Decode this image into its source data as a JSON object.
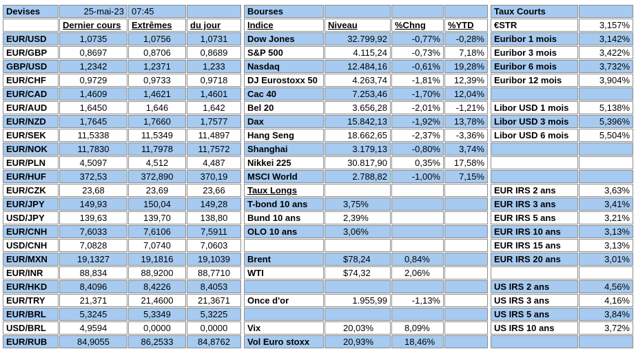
{
  "table": {
    "rows": [
      [
        "Devises",
        "25-mai-23",
        "07:45",
        null,
        "Bourses",
        null,
        null,
        null,
        "Taux Courts",
        null
      ],
      [
        null,
        "Dernier cours",
        "Extrêmes",
        "du jour",
        "Indice",
        "Niveau",
        "%Chng",
        "%YTD",
        "€STR",
        "3,157%"
      ],
      [
        "EUR/USD",
        "1,0735",
        "1,0756",
        "1,0731",
        "Dow Jones",
        "32.799,92",
        "-0,77%",
        "-0,28%",
        "Euribor 1 mois",
        "3,142%"
      ],
      [
        "EUR/GBP",
        "0,8697",
        "0,8706",
        "0,8689",
        "S&P 500",
        "4.115,24",
        "-0,73%",
        "7,18%",
        "Euribor 3 mois",
        "3,422%"
      ],
      [
        "GBP/USD",
        "1,2342",
        "1,2371",
        "1,233",
        "Nasdaq",
        "12.484,16",
        "-0,61%",
        "19,28%",
        "Euribor 6 mois",
        "3,732%"
      ],
      [
        "EUR/CHF",
        "0,9729",
        "0,9733",
        "0,9718",
        "DJ Eurostoxx 50",
        "4.263,74",
        "-1,81%",
        "12,39%",
        "Euribor 12 mois",
        "3,904%"
      ],
      [
        "EUR/CAD",
        "1,4609",
        "1,4621",
        "1,4601",
        "Cac 40",
        "7.253,46",
        "-1,70%",
        "12,04%",
        null,
        null
      ],
      [
        "EUR/AUD",
        "1,6450",
        "1,646",
        "1,642",
        "Bel 20",
        "3.656,28",
        "-2,01%",
        "-1,21%",
        "Libor USD 1 mois",
        "5,138%"
      ],
      [
        "EUR/NZD",
        "1,7645",
        "1,7660",
        "1,7577",
        "Dax",
        "15.842,13",
        "-1,92%",
        "13,78%",
        "Libor USD 3 mois",
        "5,396%"
      ],
      [
        "EUR/SEK",
        "11,5338",
        "11,5349",
        "11,4897",
        "Hang Seng",
        "18.662,65",
        "-2,37%",
        "-3,36%",
        "Libor USD 6 mois",
        "5,504%"
      ],
      [
        "EUR/NOK",
        "11,7830",
        "11,7978",
        "11,7572",
        "Shanghai",
        "3.179,13",
        "-0,80%",
        "3,74%",
        null,
        null
      ],
      [
        "EUR/PLN",
        "4,5097",
        "4,512",
        "4,487",
        "Nikkei 225",
        "30.817,90",
        "0,35%",
        "17,58%",
        null,
        null
      ],
      [
        "EUR/HUF",
        "372,53",
        "372,890",
        "370,19",
        "MSCI World",
        "2.788,82",
        "-1,00%",
        "7,15%",
        null,
        null
      ],
      [
        "EUR/CZK",
        "23,68",
        "23,69",
        "23,66",
        "Taux Longs",
        null,
        null,
        null,
        "EUR IRS 2 ans",
        "3,63%"
      ],
      [
        "EUR/JPY",
        "149,93",
        "150,04",
        "149,28",
        "T-bond 10 ans",
        "3,75%",
        null,
        null,
        "EUR IRS 3 ans",
        "3,41%"
      ],
      [
        "USD/JPY",
        "139,63",
        "139,70",
        "138,80",
        "Bund 10 ans",
        "2,39%",
        null,
        null,
        "EUR IRS 5 ans",
        "3,21%"
      ],
      [
        "EUR/CNH",
        "7,6033",
        "7,6106",
        "7,5911",
        "OLO 10 ans",
        "3,06%",
        null,
        null,
        "EUR IRS 10 ans",
        "3,13%"
      ],
      [
        "USD/CNH",
        "7,0828",
        "7,0740",
        "7,0603",
        null,
        null,
        null,
        null,
        "EUR IRS 15 ans",
        "3,13%"
      ],
      [
        "EUR/MXN",
        "19,1327",
        "19,1816",
        "19,1039",
        "Brent",
        "$78,24",
        "0,84%",
        null,
        "EUR IRS 20 ans",
        "3,01%"
      ],
      [
        "EUR/INR",
        "88,834",
        "88,9200",
        "88,7710",
        "WTI",
        "$74,32",
        "2,06%",
        null,
        null,
        null
      ],
      [
        "EUR/HKD",
        "8,4096",
        "8,4226",
        "8,4053",
        null,
        null,
        null,
        null,
        "US IRS 2 ans",
        "4,56%"
      ],
      [
        "EUR/TRY",
        "21,371",
        "21,4600",
        "21,3671",
        "Once d'or",
        "1.955,99",
        "-1,13%",
        null,
        "US IRS 3 ans",
        "4,16%"
      ],
      [
        "EUR/BRL",
        "5,3245",
        "5,3349",
        "5,3225",
        null,
        null,
        null,
        null,
        "US IRS 5 ans",
        "3,84%"
      ],
      [
        "USD/BRL",
        "4,9594",
        "0,0000",
        "0,0000",
        "Vix",
        "20,03%",
        "8,09%",
        null,
        "US IRS 10 ans",
        "3,72%"
      ],
      [
        "EUR/RUB",
        "84,9055",
        "86,2533",
        "84,8762",
        "Vol Euro stoxx",
        "20,93%",
        "18,46%",
        null,
        null,
        null
      ]
    ]
  }
}
